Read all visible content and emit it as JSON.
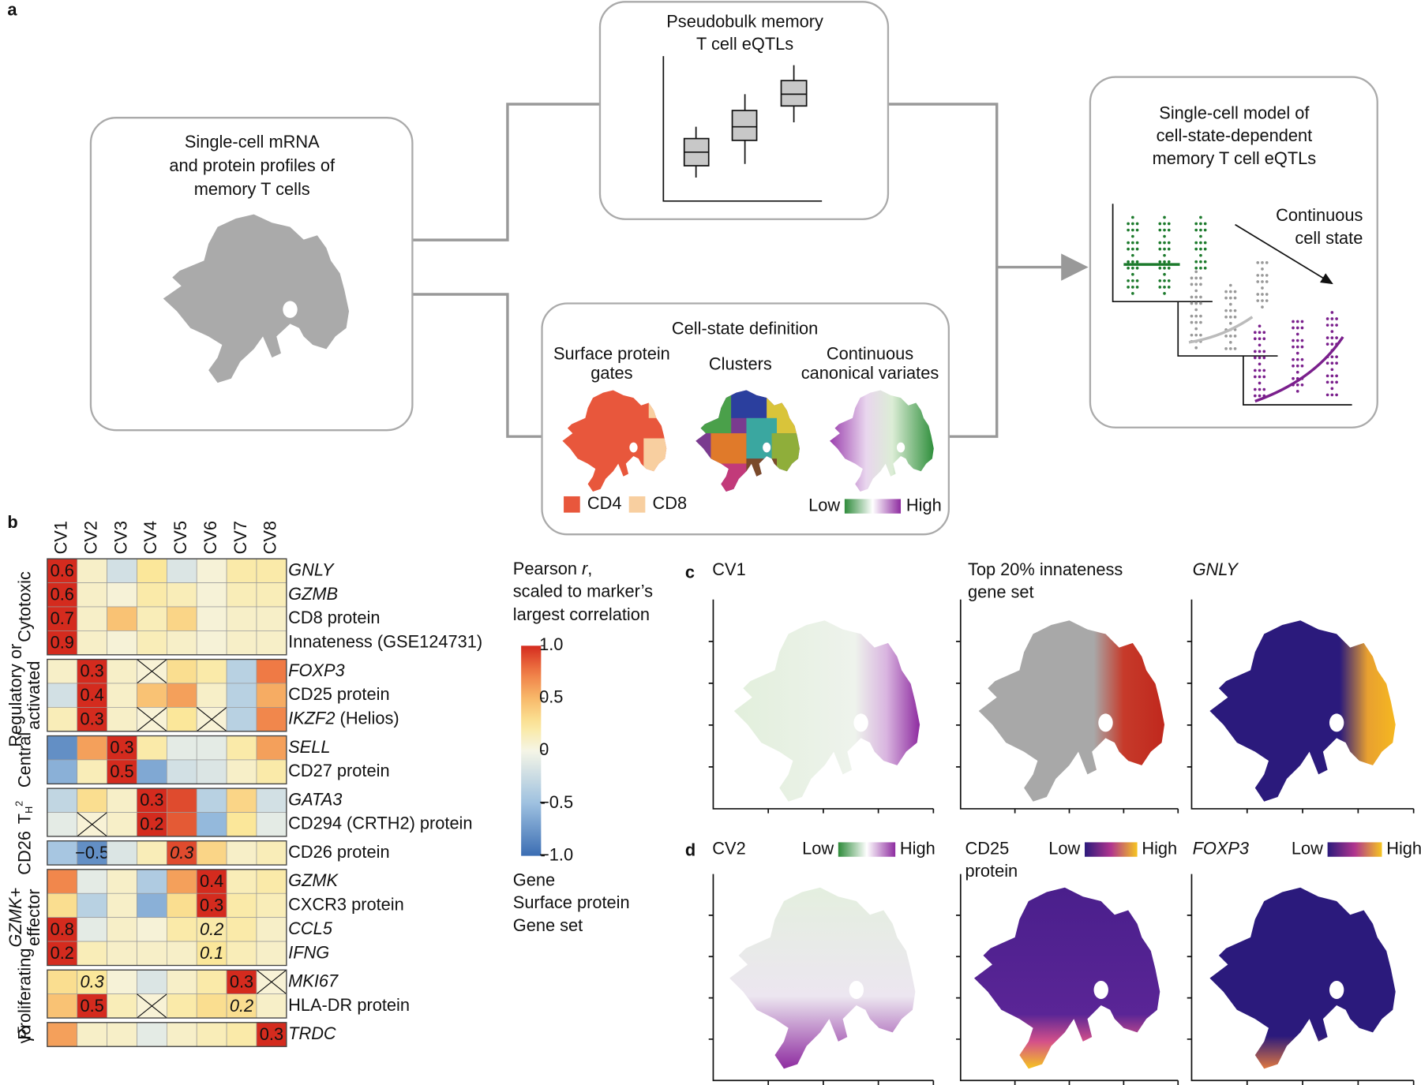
{
  "panel_a": {
    "label": "a",
    "scrna_box": {
      "lines": [
        "Single-cell mRNA",
        "and protein profiles of",
        "memory T cells"
      ]
    },
    "pseudobulk_box": {
      "lines": [
        "Pseudobulk memory",
        "T cell eQTLs"
      ]
    },
    "cell_state_box": {
      "title": "Cell-state definition",
      "surface": [
        "Surface protein",
        "gates"
      ],
      "clusters": "Clusters",
      "continuous": [
        "Continuous",
        "canonical variates"
      ],
      "legend_cd4": "CD4",
      "legend_cd8": "CD8",
      "low": "Low",
      "high": "High"
    },
    "model_box": {
      "lines": [
        "Single-cell model of",
        "cell-state-dependent",
        "memory T cell eQTLs"
      ],
      "arrow_label": [
        "Continuous",
        "cell state"
      ]
    }
  },
  "panel_b": {
    "label": "b",
    "columns": [
      "CV1",
      "CV2",
      "CV3",
      "CV4",
      "CV5",
      "CV6",
      "CV7",
      "CV8"
    ],
    "groups": [
      {
        "name_lines": [
          "Cytotoxic"
        ],
        "rows": [
          {
            "label": "GNLY",
            "kind": "gene",
            "values": [
              1.0,
              0.1,
              -0.2,
              0.25,
              -0.15,
              0.05,
              0.2,
              0.2
            ],
            "r": [
              "0.6",
              null,
              null,
              null,
              null,
              null,
              null,
              null
            ]
          },
          {
            "label": "GZMB",
            "kind": "gene",
            "values": [
              1.0,
              0.1,
              0.05,
              0.2,
              0.15,
              0.05,
              0.15,
              0.15
            ],
            "r": [
              "0.6",
              null,
              null,
              null,
              null,
              null,
              null,
              null
            ]
          },
          {
            "label": "CD8 protein",
            "kind": "protein",
            "values": [
              1.0,
              0.1,
              0.45,
              0.15,
              0.35,
              0.05,
              0.1,
              0.1
            ],
            "r": [
              "0.7",
              null,
              null,
              null,
              null,
              null,
              null,
              null
            ]
          },
          {
            "label": "Innateness (GSE124731)",
            "kind": "geneset",
            "values": [
              1.0,
              0.1,
              0.05,
              0.15,
              0.1,
              0.05,
              0.1,
              0.1
            ],
            "r": [
              "0.9",
              null,
              null,
              null,
              null,
              null,
              null,
              null
            ]
          }
        ]
      },
      {
        "name_lines": [
          "Regulatory or",
          "activated"
        ],
        "rows": [
          {
            "label": "FOXP3",
            "kind": "gene",
            "values": [
              0.1,
              1.0,
              0.1,
              null,
              0.3,
              0.2,
              -0.35,
              0.75
            ],
            "r": [
              null,
              "0.3",
              null,
              null,
              null,
              null,
              null,
              null
            ]
          },
          {
            "label": "CD25 protein",
            "kind": "protein",
            "values": [
              -0.2,
              1.0,
              0.1,
              0.45,
              0.6,
              0.1,
              -0.35,
              0.55
            ],
            "r": [
              null,
              "0.4",
              null,
              null,
              null,
              null,
              null,
              null
            ]
          },
          {
            "label": "IKZF2",
            "note": "(Helios)",
            "kind": "gene",
            "values": [
              0.15,
              1.0,
              0.1,
              null,
              0.25,
              null,
              -0.35,
              0.7
            ],
            "r": [
              null,
              "0.3",
              null,
              null,
              null,
              null,
              null,
              null
            ]
          }
        ]
      },
      {
        "name_lines": [
          "Central"
        ],
        "rows": [
          {
            "label": "SELL",
            "kind": "gene",
            "values": [
              -0.8,
              0.6,
              1.0,
              0.2,
              -0.1,
              -0.1,
              0.2,
              0.6
            ],
            "r": [
              null,
              null,
              "0.3",
              null,
              null,
              null,
              null,
              null
            ]
          },
          {
            "label": "CD27 protein",
            "kind": "protein",
            "values": [
              -0.6,
              0.15,
              1.0,
              -0.65,
              -0.2,
              -0.15,
              0.1,
              0.2
            ],
            "r": [
              null,
              null,
              "0.5",
              null,
              null,
              null,
              null,
              null
            ]
          }
        ]
      },
      {
        "name_lines": [
          "T"
        ],
        "sub": "H",
        "sup": "2",
        "rows": [
          {
            "label": "GATA3",
            "kind": "gene",
            "values": [
              -0.3,
              0.3,
              0.1,
              1.0,
              0.9,
              -0.35,
              0.35,
              -0.2
            ],
            "r": [
              null,
              null,
              null,
              "0.3",
              null,
              null,
              null,
              null
            ]
          },
          {
            "label": "CD294 (CRTH2) protein",
            "kind": "protein",
            "values": [
              -0.1,
              null,
              0.1,
              1.0,
              0.85,
              -0.55,
              0.25,
              -0.1
            ],
            "r": [
              null,
              null,
              null,
              "0.2",
              null,
              null,
              null,
              null
            ]
          }
        ]
      },
      {
        "name_lines": [
          "CD26"
        ],
        "rows": [
          {
            "label": "CD26 protein",
            "kind": "protein",
            "values": [
              -0.45,
              -0.8,
              -0.15,
              0.15,
              0.9,
              0.35,
              0.1,
              0.15
            ],
            "r": [
              null,
              "−0.5",
              null,
              null,
              "0.3",
              null,
              null,
              null
            ],
            "italic_r": [
              4
            ]
          }
        ]
      },
      {
        "name_lines": [
          "GZMK+",
          "effector"
        ],
        "italic_line": 0,
        "rows": [
          {
            "label": "GZMK",
            "kind": "gene",
            "values": [
              0.7,
              -0.1,
              0.1,
              -0.4,
              0.6,
              1.0,
              0.15,
              0.2
            ],
            "r": [
              null,
              null,
              null,
              null,
              null,
              "0.4",
              null,
              null
            ]
          },
          {
            "label": "CXCR3 protein",
            "kind": "protein",
            "values": [
              0.3,
              -0.35,
              0.1,
              -0.6,
              0.3,
              1.0,
              0.2,
              0.15
            ],
            "r": [
              null,
              null,
              null,
              null,
              null,
              "0.3",
              null,
              null
            ]
          },
          {
            "label": "CCL5",
            "kind": "gene",
            "values": [
              1.0,
              -0.1,
              0.1,
              0.05,
              0.2,
              0.2,
              0.2,
              0.1
            ],
            "r": [
              "0.8",
              null,
              null,
              null,
              null,
              "0.2",
              null,
              null
            ],
            "italic_r": [
              5
            ]
          },
          {
            "label": "IFNG",
            "kind": "gene",
            "values": [
              1.0,
              0.15,
              0.1,
              0.1,
              0.1,
              0.25,
              0.15,
              0.1
            ],
            "r": [
              "0.2",
              null,
              null,
              null,
              null,
              "0.1",
              null,
              null
            ],
            "italic_r": [
              5
            ]
          }
        ]
      },
      {
        "name_lines": [
          "Proliferating"
        ],
        "rows": [
          {
            "label": "MKI67",
            "kind": "gene",
            "values": [
              0.3,
              0.25,
              0.05,
              -0.15,
              0.1,
              0.2,
              1.0,
              null
            ],
            "r": [
              null,
              "0.3",
              null,
              null,
              null,
              null,
              "0.3",
              null
            ],
            "italic_r": [
              1
            ]
          },
          {
            "label": "HLA-DR protein",
            "kind": "protein",
            "values": [
              0.45,
              1.0,
              0.15,
              null,
              0.2,
              0.3,
              0.3,
              0.1
            ],
            "r": [
              null,
              "0.5",
              null,
              null,
              null,
              null,
              "0.2",
              null
            ],
            "italic_r": [
              6
            ]
          }
        ]
      },
      {
        "name_lines": [
          "γδ"
        ],
        "rows": [
          {
            "label": "TRDC",
            "kind": "gene",
            "values": [
              0.6,
              0.1,
              0.1,
              -0.1,
              0.1,
              0.15,
              0.2,
              1.0
            ],
            "r": [
              null,
              null,
              null,
              null,
              null,
              null,
              null,
              "0.3"
            ]
          }
        ]
      }
    ],
    "colorbar": {
      "title": {
        "prefix": "Pearson ",
        "symbol": "r",
        "suffix": ","
      },
      "title_lines": [
        "scaled to marker’s",
        "largest correlation"
      ],
      "lim": [
        -1,
        1
      ],
      "ticks": [
        {
          "value": 1,
          "label": "1.0"
        },
        0.5,
        0,
        {
          "value": -0.5,
          "label": "−0.5"
        },
        {
          "value": -1,
          "label": "−1.0"
        }
      ]
    },
    "kinds": [
      {
        "kind": "gene",
        "name": "Gene",
        "color": "#3f4ea1"
      },
      {
        "kind": "protein",
        "name": "Surface protein",
        "color": "#1c7a2c"
      },
      {
        "kind": "geneset",
        "name": "Gene set",
        "color": "#c0282d"
      }
    ]
  },
  "panel_c": {
    "label": "c",
    "plots": [
      {
        "title_lines": [
          "CV1"
        ]
      },
      {
        "title_lines": [
          "Top 20% innateness",
          "gene set"
        ]
      },
      {
        "title_lines": [
          "GNLY"
        ],
        "italic": true
      }
    ]
  },
  "panel_d": {
    "label": "d",
    "plots": [
      {
        "title_lines": [
          "CV2"
        ],
        "low": "Low",
        "high": "High"
      },
      {
        "title_lines": [
          "CD25",
          "protein"
        ],
        "low": "Low",
        "high": "High"
      },
      {
        "title_lines": [
          "FOXP3"
        ],
        "italic": true,
        "low": "Low",
        "high": "High"
      }
    ]
  }
}
